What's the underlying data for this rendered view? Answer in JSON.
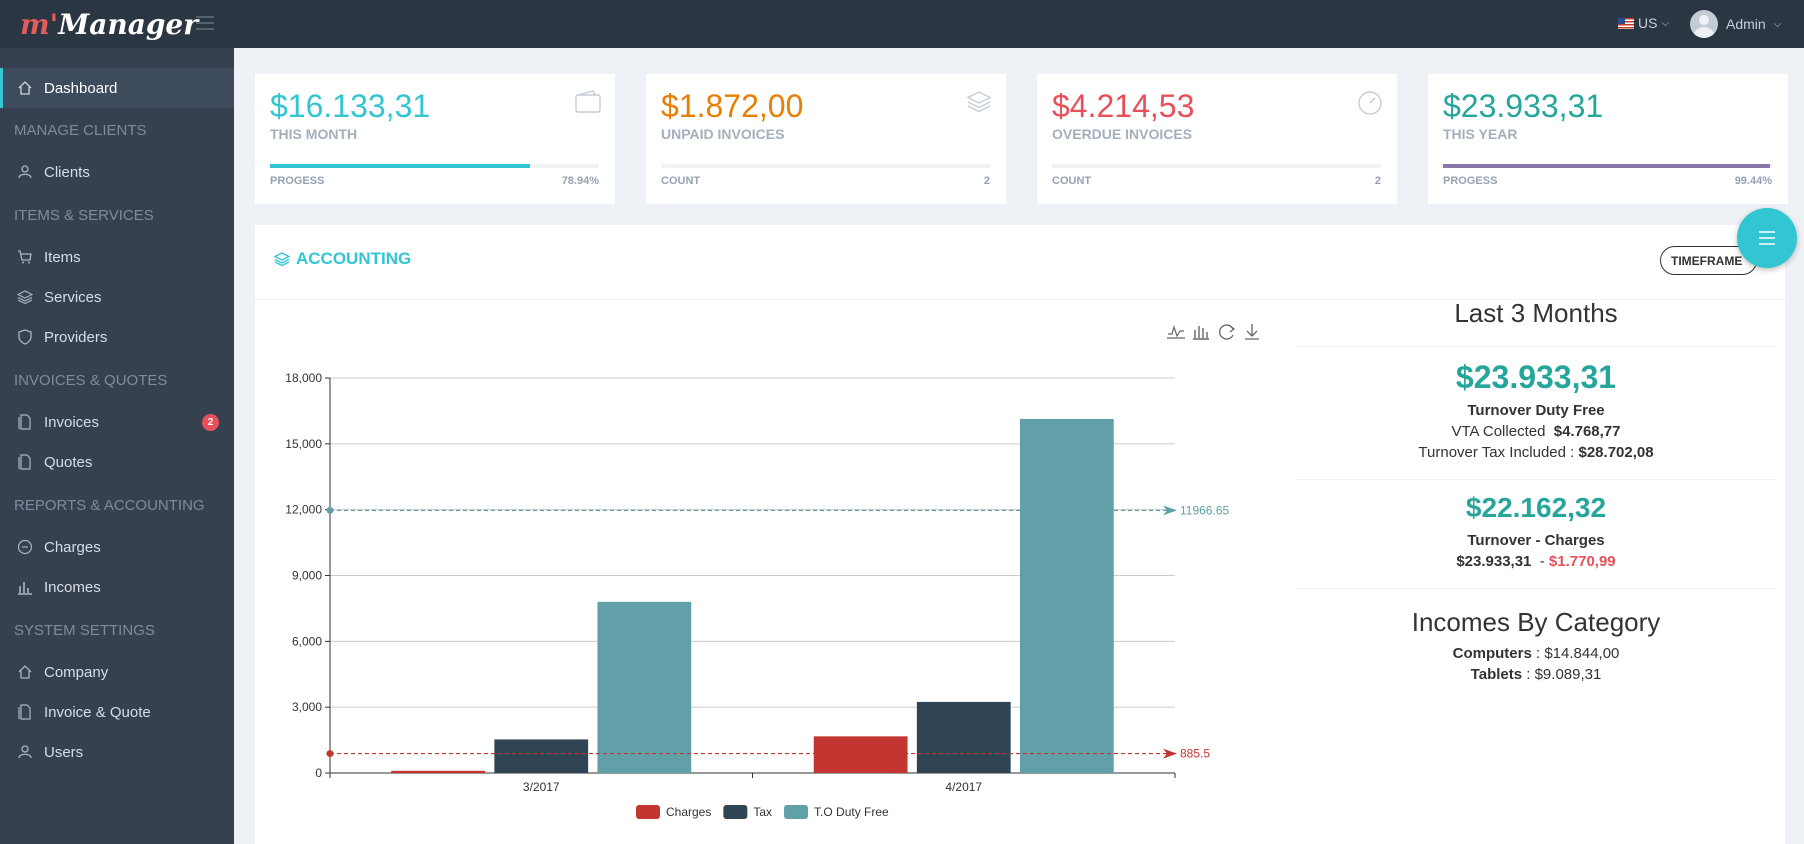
{
  "header": {
    "logo_text": "m'Manager",
    "language": "US",
    "user_name": "Admin"
  },
  "sidebar": {
    "items": [
      {
        "label": "Dashboard",
        "icon": "home-icon",
        "active": true
      },
      {
        "label": "Clients",
        "icon": "user-icon"
      },
      {
        "label": "Items",
        "icon": "cart-icon"
      },
      {
        "label": "Services",
        "icon": "layers-icon"
      },
      {
        "label": "Providers",
        "icon": "shield-icon"
      },
      {
        "label": "Invoices",
        "icon": "doc-icon",
        "badge": "2"
      },
      {
        "label": "Quotes",
        "icon": "doc-icon"
      },
      {
        "label": "Charges",
        "icon": "minus-circle-icon"
      },
      {
        "label": "Incomes",
        "icon": "bar-chart-icon"
      },
      {
        "label": "Company",
        "icon": "home-icon"
      },
      {
        "label": "Invoice & Quote",
        "icon": "doc-icon"
      },
      {
        "label": "Users",
        "icon": "user-icon"
      }
    ],
    "sections": [
      "MANAGE CLIENTS",
      "ITEMS & SERVICES",
      "INVOICES & QUOTES",
      "REPORTS & ACCOUNTING",
      "SYSTEM SETTINGS"
    ]
  },
  "stats": [
    {
      "value": "$16.133,31",
      "label": "THIS MONTH",
      "foot_label": "PROGESS",
      "foot_value": "78.94%",
      "progress": 0.7894,
      "color": "#32c5d2",
      "bar_color": "#32c5d2",
      "icon": "wallet-icon"
    },
    {
      "value": "$1.872,00",
      "label": "UNPAID INVOICES",
      "foot_label": "COUNT",
      "foot_value": "2",
      "progress": 0,
      "color": "#e87e04",
      "bar_color": "#e87e04",
      "icon": "layers-icon"
    },
    {
      "value": "$4.214,53",
      "label": "OVERDUE INVOICES",
      "foot_label": "COUNT",
      "foot_value": "2",
      "progress": 0,
      "color": "#e7505a",
      "bar_color": "#e7505a",
      "icon": "gauge-icon"
    },
    {
      "value": "$23.933,31",
      "label": "THIS YEAR",
      "foot_label": "PROGESS",
      "foot_value": "99.44%",
      "progress": 0.9944,
      "color": "#26a69a",
      "bar_color": "#8877a9",
      "icon": "none"
    }
  ],
  "accounting": {
    "title": "ACCOUNTING",
    "timeframe_label": "TIMEFRAME"
  },
  "chart_data": {
    "type": "bar",
    "categories": [
      "3/2017",
      "4/2017"
    ],
    "series": [
      {
        "name": "Charges",
        "values": [
          100,
          1671
        ],
        "color": "#c23531"
      },
      {
        "name": "Tax",
        "values": [
          1530,
          3239
        ],
        "color": "#2f4554"
      },
      {
        "name": "T.O Duty Free",
        "values": [
          7800,
          16133
        ],
        "color": "#61a0a8"
      }
    ],
    "y_ticks": [
      "0",
      "3,000",
      "6,000",
      "9,000",
      "12,000",
      "15,000",
      "18,000"
    ],
    "ylim": [
      0,
      18000
    ],
    "mark_lines": [
      {
        "value": 11966.65,
        "label": "11966.65",
        "color": "#61a0a8"
      },
      {
        "value": 885.5,
        "label": "885.5",
        "color": "#c23531"
      }
    ],
    "legend_position": "bottom",
    "grid": true
  },
  "summary": {
    "title": "Last 3 Months",
    "turnover_value": "$23.933,31",
    "turnover_label": "Turnover Duty Free",
    "vta_label": "VTA Collected",
    "vta_value": "$4.768,77",
    "tax_included_label": "Turnover Tax Included :",
    "tax_included_value": "$28.702,08",
    "net_value": "$22.162,32",
    "net_label": "Turnover - Charges",
    "net_turnover": "$23.933,31",
    "net_sep": "-",
    "net_charges": "$1.770,99",
    "incomes_title": "Incomes By Category",
    "categories": [
      {
        "name": "Computers",
        "sep": ":",
        "value": "$14.844,00"
      },
      {
        "name": "Tablets",
        "sep": ":",
        "value": "$9.089,31"
      }
    ]
  }
}
